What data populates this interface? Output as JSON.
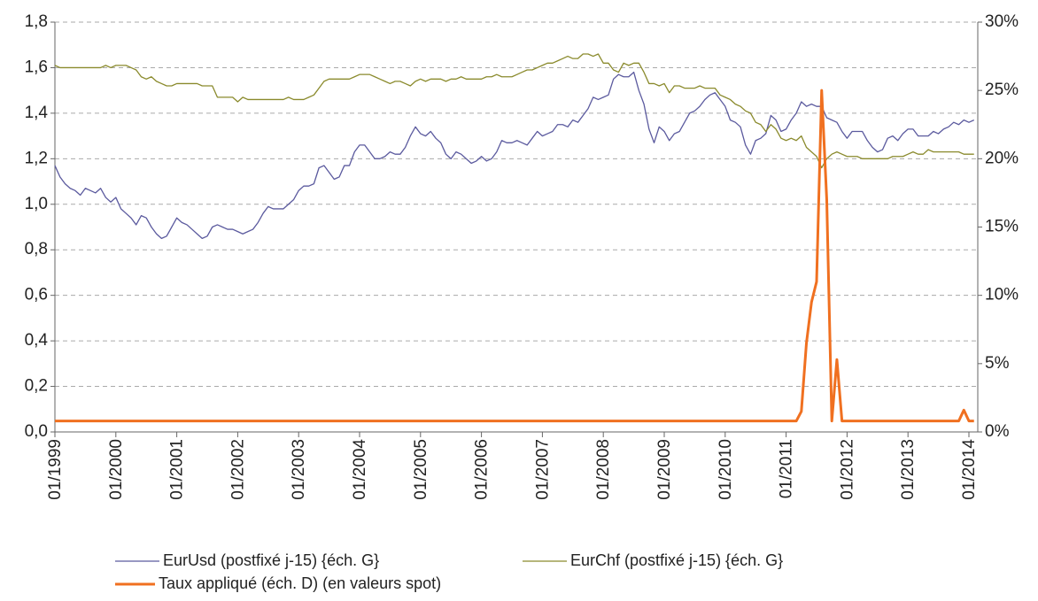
{
  "chart_data": {
    "type": "line",
    "x": [
      "01/1999",
      "02/1999",
      "03/1999",
      "04/1999",
      "05/1999",
      "06/1999",
      "07/1999",
      "08/1999",
      "09/1999",
      "10/1999",
      "11/1999",
      "12/1999",
      "01/2000",
      "02/2000",
      "03/2000",
      "04/2000",
      "05/2000",
      "06/2000",
      "07/2000",
      "08/2000",
      "09/2000",
      "10/2000",
      "11/2000",
      "12/2000",
      "01/2001",
      "02/2001",
      "03/2001",
      "04/2001",
      "05/2001",
      "06/2001",
      "07/2001",
      "08/2001",
      "09/2001",
      "10/2001",
      "11/2001",
      "12/2001",
      "01/2002",
      "02/2002",
      "03/2002",
      "04/2002",
      "05/2002",
      "06/2002",
      "07/2002",
      "08/2002",
      "09/2002",
      "10/2002",
      "11/2002",
      "12/2002",
      "01/2003",
      "02/2003",
      "03/2003",
      "04/2003",
      "05/2003",
      "06/2003",
      "07/2003",
      "08/2003",
      "09/2003",
      "10/2003",
      "11/2003",
      "12/2003",
      "01/2004",
      "02/2004",
      "03/2004",
      "04/2004",
      "05/2004",
      "06/2004",
      "07/2004",
      "08/2004",
      "09/2004",
      "10/2004",
      "11/2004",
      "12/2004",
      "01/2005",
      "02/2005",
      "03/2005",
      "04/2005",
      "05/2005",
      "06/2005",
      "07/2005",
      "08/2005",
      "09/2005",
      "10/2005",
      "11/2005",
      "12/2005",
      "01/2006",
      "02/2006",
      "03/2006",
      "04/2006",
      "05/2006",
      "06/2006",
      "07/2006",
      "08/2006",
      "09/2006",
      "10/2006",
      "11/2006",
      "12/2006",
      "01/2007",
      "02/2007",
      "03/2007",
      "04/2007",
      "05/2007",
      "06/2007",
      "07/2007",
      "08/2007",
      "09/2007",
      "10/2007",
      "11/2007",
      "12/2007",
      "01/2008",
      "02/2008",
      "03/2008",
      "04/2008",
      "05/2008",
      "06/2008",
      "07/2008",
      "08/2008",
      "09/2008",
      "10/2008",
      "11/2008",
      "12/2008",
      "01/2009",
      "02/2009",
      "03/2009",
      "04/2009",
      "05/2009",
      "06/2009",
      "07/2009",
      "08/2009",
      "09/2009",
      "10/2009",
      "11/2009",
      "12/2009",
      "01/2010",
      "02/2010",
      "03/2010",
      "04/2010",
      "05/2010",
      "06/2010",
      "07/2010",
      "08/2010",
      "09/2010",
      "10/2010",
      "11/2010",
      "12/2010",
      "01/2011",
      "02/2011",
      "03/2011",
      "04/2011",
      "05/2011",
      "06/2011",
      "07/2011",
      "08/2011",
      "09/2011",
      "10/2011",
      "11/2011",
      "12/2011",
      "01/2012",
      "02/2012",
      "03/2012",
      "04/2012",
      "05/2012",
      "06/2012",
      "07/2012",
      "08/2012",
      "09/2012",
      "10/2012",
      "11/2012",
      "12/2012",
      "01/2013",
      "02/2013",
      "03/2013",
      "04/2013",
      "05/2013",
      "06/2013",
      "07/2013",
      "08/2013",
      "09/2013",
      "10/2013",
      "11/2013",
      "12/2013",
      "01/2014",
      "02/2014"
    ],
    "xticks": [
      "01/1999",
      "01/2000",
      "01/2001",
      "01/2002",
      "01/2003",
      "01/2004",
      "01/2005",
      "01/2006",
      "01/2007",
      "01/2008",
      "01/2009",
      "01/2010",
      "01/2011",
      "01/2012",
      "01/2013",
      "01/2014"
    ],
    "ylim": [
      0,
      1.8
    ],
    "yticks": [
      {
        "value": 0,
        "label": "0,0"
      },
      {
        "value": 0.2,
        "label": "0,2"
      },
      {
        "value": 0.4,
        "label": "0,4"
      },
      {
        "value": 0.6,
        "label": "0,6"
      },
      {
        "value": 0.8,
        "label": "0,8"
      },
      {
        "value": 1.0,
        "label": "1,0"
      },
      {
        "value": 1.2,
        "label": "1,2"
      },
      {
        "value": 1.4,
        "label": "1,4"
      },
      {
        "value": 1.6,
        "label": "1,6"
      },
      {
        "value": 1.8,
        "label": "1,8"
      }
    ],
    "y2lim": [
      0,
      30
    ],
    "y2ticks": [
      {
        "value": 0,
        "label": "0%"
      },
      {
        "value": 5,
        "label": "5%"
      },
      {
        "value": 10,
        "label": "10%"
      },
      {
        "value": 15,
        "label": "15%"
      },
      {
        "value": 20,
        "label": "20%"
      },
      {
        "value": 25,
        "label": "25%"
      },
      {
        "value": 30,
        "label": "30%"
      }
    ],
    "grid": true,
    "series": [
      {
        "name": "EurUsd (postfixé j-15) {éch. G}",
        "color": "#5b5a9e",
        "values": [
          1.17,
          1.12,
          1.09,
          1.07,
          1.06,
          1.04,
          1.07,
          1.06,
          1.05,
          1.07,
          1.03,
          1.01,
          1.03,
          0.98,
          0.96,
          0.94,
          0.91,
          0.95,
          0.94,
          0.9,
          0.87,
          0.85,
          0.86,
          0.9,
          0.94,
          0.92,
          0.91,
          0.89,
          0.87,
          0.85,
          0.86,
          0.9,
          0.91,
          0.9,
          0.89,
          0.89,
          0.88,
          0.87,
          0.88,
          0.89,
          0.92,
          0.96,
          0.99,
          0.98,
          0.98,
          0.98,
          1.0,
          1.02,
          1.06,
          1.08,
          1.08,
          1.09,
          1.16,
          1.17,
          1.14,
          1.11,
          1.12,
          1.17,
          1.17,
          1.23,
          1.26,
          1.26,
          1.23,
          1.2,
          1.2,
          1.21,
          1.23,
          1.22,
          1.22,
          1.25,
          1.3,
          1.34,
          1.31,
          1.3,
          1.32,
          1.29,
          1.27,
          1.22,
          1.2,
          1.23,
          1.22,
          1.2,
          1.18,
          1.19,
          1.21,
          1.19,
          1.2,
          1.23,
          1.28,
          1.27,
          1.27,
          1.28,
          1.27,
          1.26,
          1.29,
          1.32,
          1.3,
          1.31,
          1.32,
          1.35,
          1.35,
          1.34,
          1.37,
          1.36,
          1.39,
          1.42,
          1.47,
          1.46,
          1.47,
          1.48,
          1.55,
          1.57,
          1.56,
          1.56,
          1.58,
          1.5,
          1.44,
          1.33,
          1.27,
          1.34,
          1.32,
          1.28,
          1.31,
          1.32,
          1.36,
          1.4,
          1.41,
          1.43,
          1.46,
          1.48,
          1.49,
          1.46,
          1.43,
          1.37,
          1.36,
          1.34,
          1.26,
          1.22,
          1.28,
          1.29,
          1.31,
          1.39,
          1.37,
          1.32,
          1.33,
          1.37,
          1.4,
          1.45,
          1.43,
          1.44,
          1.43,
          1.43,
          1.38,
          1.37,
          1.36,
          1.32,
          1.29,
          1.32,
          1.32,
          1.32,
          1.28,
          1.25,
          1.23,
          1.24,
          1.29,
          1.3,
          1.28,
          1.31,
          1.33,
          1.33,
          1.3,
          1.3,
          1.3,
          1.32,
          1.31,
          1.33,
          1.34,
          1.36,
          1.35,
          1.37,
          1.36,
          1.37
        ]
      },
      {
        "name": "EurChf (postfixé j-15) {éch. G}",
        "color": "#8a8a2c",
        "values": [
          1.61,
          1.6,
          1.6,
          1.6,
          1.6,
          1.6,
          1.6,
          1.6,
          1.6,
          1.6,
          1.61,
          1.6,
          1.61,
          1.61,
          1.61,
          1.6,
          1.59,
          1.56,
          1.55,
          1.56,
          1.54,
          1.53,
          1.52,
          1.52,
          1.53,
          1.53,
          1.53,
          1.53,
          1.53,
          1.52,
          1.52,
          1.52,
          1.47,
          1.47,
          1.47,
          1.47,
          1.45,
          1.47,
          1.46,
          1.46,
          1.46,
          1.46,
          1.46,
          1.46,
          1.46,
          1.46,
          1.47,
          1.46,
          1.46,
          1.46,
          1.47,
          1.48,
          1.51,
          1.54,
          1.55,
          1.55,
          1.55,
          1.55,
          1.55,
          1.56,
          1.57,
          1.57,
          1.57,
          1.56,
          1.55,
          1.54,
          1.53,
          1.54,
          1.54,
          1.53,
          1.52,
          1.54,
          1.55,
          1.54,
          1.55,
          1.55,
          1.55,
          1.54,
          1.55,
          1.55,
          1.56,
          1.55,
          1.55,
          1.55,
          1.55,
          1.56,
          1.56,
          1.57,
          1.56,
          1.56,
          1.56,
          1.57,
          1.58,
          1.59,
          1.59,
          1.6,
          1.61,
          1.62,
          1.62,
          1.63,
          1.64,
          1.65,
          1.64,
          1.64,
          1.66,
          1.66,
          1.65,
          1.66,
          1.62,
          1.62,
          1.59,
          1.58,
          1.62,
          1.61,
          1.62,
          1.62,
          1.58,
          1.53,
          1.53,
          1.52,
          1.53,
          1.49,
          1.52,
          1.52,
          1.51,
          1.51,
          1.51,
          1.52,
          1.51,
          1.51,
          1.51,
          1.48,
          1.47,
          1.46,
          1.44,
          1.43,
          1.41,
          1.4,
          1.36,
          1.35,
          1.32,
          1.35,
          1.33,
          1.29,
          1.28,
          1.29,
          1.28,
          1.3,
          1.25,
          1.23,
          1.21,
          1.16,
          1.2,
          1.22,
          1.23,
          1.22,
          1.21,
          1.21,
          1.21,
          1.2,
          1.2,
          1.2,
          1.2,
          1.2,
          1.2,
          1.21,
          1.21,
          1.21,
          1.22,
          1.23,
          1.22,
          1.22,
          1.24,
          1.23,
          1.23,
          1.23,
          1.23,
          1.23,
          1.23,
          1.22,
          1.22,
          1.22
        ]
      },
      {
        "name": "Taux appliqué (éch. D) (en valeurs spot)",
        "color": "#f07020",
        "axis": "y2",
        "values": [
          0.8,
          0.8,
          0.8,
          0.8,
          0.8,
          0.8,
          0.8,
          0.8,
          0.8,
          0.8,
          0.8,
          0.8,
          0.8,
          0.8,
          0.8,
          0.8,
          0.8,
          0.8,
          0.8,
          0.8,
          0.8,
          0.8,
          0.8,
          0.8,
          0.8,
          0.8,
          0.8,
          0.8,
          0.8,
          0.8,
          0.8,
          0.8,
          0.8,
          0.8,
          0.8,
          0.8,
          0.8,
          0.8,
          0.8,
          0.8,
          0.8,
          0.8,
          0.8,
          0.8,
          0.8,
          0.8,
          0.8,
          0.8,
          0.8,
          0.8,
          0.8,
          0.8,
          0.8,
          0.8,
          0.8,
          0.8,
          0.8,
          0.8,
          0.8,
          0.8,
          0.8,
          0.8,
          0.8,
          0.8,
          0.8,
          0.8,
          0.8,
          0.8,
          0.8,
          0.8,
          0.8,
          0.8,
          0.8,
          0.8,
          0.8,
          0.8,
          0.8,
          0.8,
          0.8,
          0.8,
          0.8,
          0.8,
          0.8,
          0.8,
          0.8,
          0.8,
          0.8,
          0.8,
          0.8,
          0.8,
          0.8,
          0.8,
          0.8,
          0.8,
          0.8,
          0.8,
          0.8,
          0.8,
          0.8,
          0.8,
          0.8,
          0.8,
          0.8,
          0.8,
          0.8,
          0.8,
          0.8,
          0.8,
          0.8,
          0.8,
          0.8,
          0.8,
          0.8,
          0.8,
          0.8,
          0.8,
          0.8,
          0.8,
          0.8,
          0.8,
          0.8,
          0.8,
          0.8,
          0.8,
          0.8,
          0.8,
          0.8,
          0.8,
          0.8,
          0.8,
          0.8,
          0.8,
          0.8,
          0.8,
          0.8,
          0.8,
          0.8,
          0.8,
          0.8,
          0.8,
          0.8,
          0.8,
          0.8,
          0.8,
          0.8,
          0.8,
          0.8,
          1.5,
          6.5,
          9.5,
          11,
          25,
          17,
          0.8,
          5.3,
          0.8,
          0.8,
          0.8,
          0.8,
          0.8,
          0.8,
          0.8,
          0.8,
          0.8,
          0.8,
          0.8,
          0.8,
          0.8,
          0.8,
          0.8,
          0.8,
          0.8,
          0.8,
          0.8,
          0.8,
          0.8,
          0.8,
          0.8,
          0.8,
          1.6,
          0.8,
          0.8
        ]
      }
    ]
  }
}
